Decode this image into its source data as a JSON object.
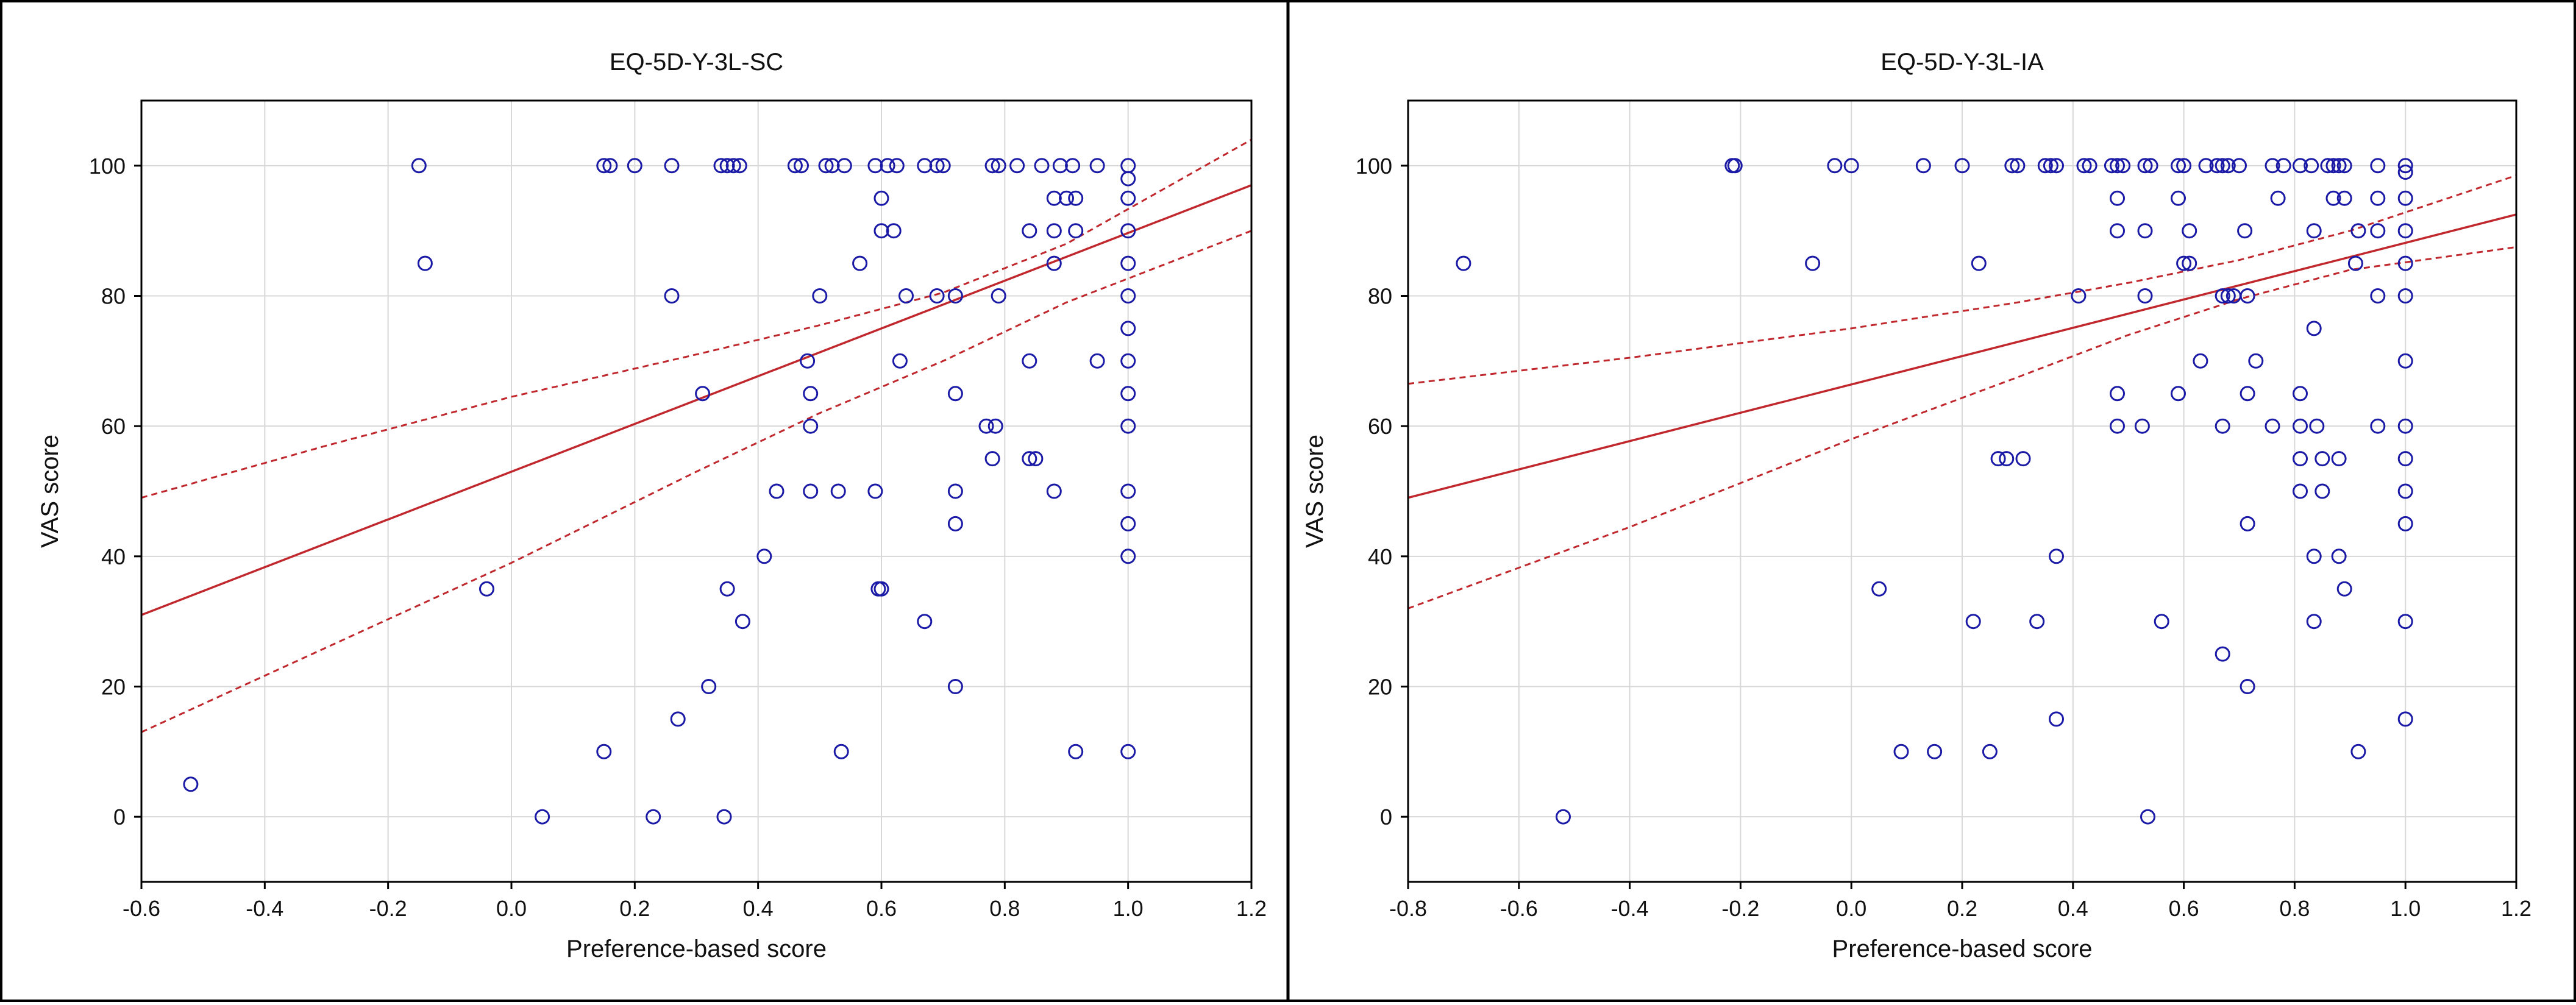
{
  "colors": {
    "point": "#1a1aa6",
    "fit_line": "#c0282d",
    "grid": "#d8d8d8",
    "axis": "#000000",
    "panel_border": "#000000"
  },
  "chart_data": [
    {
      "type": "scatter",
      "title": "EQ-5D-Y-3L-SC",
      "xlabel": "Preference-based score",
      "ylabel": "VAS score",
      "xlim": [
        -0.6,
        1.2
      ],
      "ylim": [
        -10,
        110
      ],
      "xticks": [
        -0.6,
        -0.4,
        -0.2,
        0.0,
        0.2,
        0.4,
        0.6,
        0.8,
        1.0,
        1.2
      ],
      "xtick_labels": [
        "-0.6",
        "-0.4",
        "-0.2",
        "0.0",
        "0.2",
        "0.4",
        "0.6",
        "0.8",
        "1.0",
        "1.2"
      ],
      "yticks": [
        0,
        20,
        40,
        60,
        80,
        100
      ],
      "ytick_labels": [
        "0",
        "20",
        "40",
        "60",
        "80",
        "100"
      ],
      "grid": true,
      "fit": {
        "x": [
          -0.6,
          1.2
        ],
        "y": [
          31,
          97
        ]
      },
      "ci_upper": {
        "x": [
          -0.6,
          -0.3,
          0.0,
          0.3,
          0.5,
          0.7,
          0.9,
          1.2
        ],
        "y": [
          49,
          57,
          64.5,
          71,
          75.5,
          80.5,
          88,
          104
        ]
      },
      "ci_lower": {
        "x": [
          -0.6,
          -0.3,
          0.0,
          0.3,
          0.5,
          0.7,
          0.9,
          1.2
        ],
        "y": [
          13,
          26,
          39,
          53,
          62,
          70,
          79,
          90
        ]
      },
      "points": [
        {
          "x": -0.52,
          "y": 5
        },
        {
          "x": -0.15,
          "y": 100
        },
        {
          "x": -0.14,
          "y": 85
        },
        {
          "x": -0.04,
          "y": 35
        },
        {
          "x": 0.05,
          "y": 0
        },
        {
          "x": 0.15,
          "y": 10
        },
        {
          "x": 0.15,
          "y": 100
        },
        {
          "x": 0.16,
          "y": 100
        },
        {
          "x": 0.2,
          "y": 100
        },
        {
          "x": 0.23,
          "y": 0
        },
        {
          "x": 0.26,
          "y": 100
        },
        {
          "x": 0.26,
          "y": 80
        },
        {
          "x": 0.27,
          "y": 15
        },
        {
          "x": 0.31,
          "y": 65
        },
        {
          "x": 0.32,
          "y": 20
        },
        {
          "x": 0.34,
          "y": 100
        },
        {
          "x": 0.35,
          "y": 100
        },
        {
          "x": 0.345,
          "y": 0
        },
        {
          "x": 0.35,
          "y": 35
        },
        {
          "x": 0.36,
          "y": 100
        },
        {
          "x": 0.37,
          "y": 100
        },
        {
          "x": 0.375,
          "y": 30
        },
        {
          "x": 0.41,
          "y": 40
        },
        {
          "x": 0.43,
          "y": 50
        },
        {
          "x": 0.46,
          "y": 100
        },
        {
          "x": 0.47,
          "y": 100
        },
        {
          "x": 0.48,
          "y": 70
        },
        {
          "x": 0.485,
          "y": 65
        },
        {
          "x": 0.485,
          "y": 60
        },
        {
          "x": 0.485,
          "y": 50
        },
        {
          "x": 0.5,
          "y": 80
        },
        {
          "x": 0.51,
          "y": 100
        },
        {
          "x": 0.52,
          "y": 100
        },
        {
          "x": 0.53,
          "y": 50
        },
        {
          "x": 0.535,
          "y": 10
        },
        {
          "x": 0.54,
          "y": 100
        },
        {
          "x": 0.565,
          "y": 85
        },
        {
          "x": 0.59,
          "y": 100
        },
        {
          "x": 0.59,
          "y": 50
        },
        {
          "x": 0.595,
          "y": 35
        },
        {
          "x": 0.6,
          "y": 35
        },
        {
          "x": 0.6,
          "y": 95
        },
        {
          "x": 0.6,
          "y": 90
        },
        {
          "x": 0.61,
          "y": 100
        },
        {
          "x": 0.62,
          "y": 90
        },
        {
          "x": 0.625,
          "y": 100
        },
        {
          "x": 0.63,
          "y": 70
        },
        {
          "x": 0.64,
          "y": 80
        },
        {
          "x": 0.67,
          "y": 100
        },
        {
          "x": 0.67,
          "y": 30
        },
        {
          "x": 0.69,
          "y": 100
        },
        {
          "x": 0.69,
          "y": 80
        },
        {
          "x": 0.7,
          "y": 100
        },
        {
          "x": 0.72,
          "y": 80
        },
        {
          "x": 0.72,
          "y": 65
        },
        {
          "x": 0.72,
          "y": 50
        },
        {
          "x": 0.72,
          "y": 45
        },
        {
          "x": 0.72,
          "y": 20
        },
        {
          "x": 0.77,
          "y": 60
        },
        {
          "x": 0.78,
          "y": 100
        },
        {
          "x": 0.78,
          "y": 55
        },
        {
          "x": 0.785,
          "y": 60
        },
        {
          "x": 0.79,
          "y": 100
        },
        {
          "x": 0.79,
          "y": 80
        },
        {
          "x": 0.82,
          "y": 100
        },
        {
          "x": 0.84,
          "y": 90
        },
        {
          "x": 0.84,
          "y": 70
        },
        {
          "x": 0.84,
          "y": 55
        },
        {
          "x": 0.85,
          "y": 55
        },
        {
          "x": 0.86,
          "y": 100
        },
        {
          "x": 0.88,
          "y": 95
        },
        {
          "x": 0.88,
          "y": 90
        },
        {
          "x": 0.88,
          "y": 85
        },
        {
          "x": 0.88,
          "y": 50
        },
        {
          "x": 0.89,
          "y": 100
        },
        {
          "x": 0.9,
          "y": 95
        },
        {
          "x": 0.91,
          "y": 100
        },
        {
          "x": 0.915,
          "y": 95
        },
        {
          "x": 0.915,
          "y": 90
        },
        {
          "x": 0.915,
          "y": 10
        },
        {
          "x": 0.95,
          "y": 100
        },
        {
          "x": 0.95,
          "y": 70
        },
        {
          "x": 1.0,
          "y": 100
        },
        {
          "x": 1.0,
          "y": 98
        },
        {
          "x": 1.0,
          "y": 95
        },
        {
          "x": 1.0,
          "y": 90
        },
        {
          "x": 1.0,
          "y": 85
        },
        {
          "x": 1.0,
          "y": 80
        },
        {
          "x": 1.0,
          "y": 75
        },
        {
          "x": 1.0,
          "y": 70
        },
        {
          "x": 1.0,
          "y": 65
        },
        {
          "x": 1.0,
          "y": 60
        },
        {
          "x": 1.0,
          "y": 50
        },
        {
          "x": 1.0,
          "y": 45
        },
        {
          "x": 1.0,
          "y": 40
        },
        {
          "x": 1.0,
          "y": 10
        }
      ]
    },
    {
      "type": "scatter",
      "title": "EQ-5D-Y-3L-IA",
      "xlabel": "Preference-based score",
      "ylabel": "VAS score",
      "xlim": [
        -0.8,
        1.2
      ],
      "ylim": [
        -10,
        110
      ],
      "xticks": [
        -0.8,
        -0.6,
        -0.4,
        -0.2,
        0.0,
        0.2,
        0.4,
        0.6,
        0.8,
        1.0,
        1.2
      ],
      "xtick_labels": [
        "-0.8",
        "-0.6",
        "-0.4",
        "-0.2",
        "0.0",
        "0.2",
        "0.4",
        "0.6",
        "0.8",
        "1.0",
        "1.2"
      ],
      "yticks": [
        0,
        20,
        40,
        60,
        80,
        100
      ],
      "ytick_labels": [
        "0",
        "20",
        "40",
        "60",
        "80",
        "100"
      ],
      "grid": true,
      "fit": {
        "x": [
          -0.8,
          1.2
        ],
        "y": [
          49,
          92.5
        ]
      },
      "ci_upper": {
        "x": [
          -0.8,
          -0.4,
          0.0,
          0.3,
          0.5,
          0.7,
          0.9,
          1.2
        ],
        "y": [
          66.5,
          70.5,
          75,
          79,
          82,
          85.5,
          90,
          98.5
        ]
      },
      "ci_lower": {
        "x": [
          -0.8,
          -0.4,
          0.0,
          0.3,
          0.5,
          0.7,
          0.9,
          1.2
        ],
        "y": [
          32,
          44.5,
          58,
          67.5,
          74,
          79.5,
          84,
          87.5
        ]
      },
      "points": [
        {
          "x": -0.7,
          "y": 85
        },
        {
          "x": -0.52,
          "y": 0
        },
        {
          "x": -0.215,
          "y": 100
        },
        {
          "x": -0.21,
          "y": 100
        },
        {
          "x": -0.07,
          "y": 85
        },
        {
          "x": -0.03,
          "y": 100
        },
        {
          "x": 0.0,
          "y": 100
        },
        {
          "x": 0.05,
          "y": 35
        },
        {
          "x": 0.09,
          "y": 10
        },
        {
          "x": 0.13,
          "y": 100
        },
        {
          "x": 0.15,
          "y": 10
        },
        {
          "x": 0.2,
          "y": 100
        },
        {
          "x": 0.22,
          "y": 30
        },
        {
          "x": 0.23,
          "y": 85
        },
        {
          "x": 0.25,
          "y": 10
        },
        {
          "x": 0.265,
          "y": 55
        },
        {
          "x": 0.28,
          "y": 55
        },
        {
          "x": 0.29,
          "y": 100
        },
        {
          "x": 0.3,
          "y": 100
        },
        {
          "x": 0.31,
          "y": 55
        },
        {
          "x": 0.335,
          "y": 30
        },
        {
          "x": 0.35,
          "y": 100
        },
        {
          "x": 0.36,
          "y": 100
        },
        {
          "x": 0.37,
          "y": 100
        },
        {
          "x": 0.37,
          "y": 40
        },
        {
          "x": 0.37,
          "y": 15
        },
        {
          "x": 0.41,
          "y": 80
        },
        {
          "x": 0.42,
          "y": 100
        },
        {
          "x": 0.43,
          "y": 100
        },
        {
          "x": 0.47,
          "y": 100
        },
        {
          "x": 0.48,
          "y": 100
        },
        {
          "x": 0.48,
          "y": 95
        },
        {
          "x": 0.48,
          "y": 90
        },
        {
          "x": 0.48,
          "y": 65
        },
        {
          "x": 0.48,
          "y": 60
        },
        {
          "x": 0.49,
          "y": 100
        },
        {
          "x": 0.525,
          "y": 60
        },
        {
          "x": 0.53,
          "y": 100
        },
        {
          "x": 0.53,
          "y": 90
        },
        {
          "x": 0.53,
          "y": 80
        },
        {
          "x": 0.535,
          "y": 0
        },
        {
          "x": 0.54,
          "y": 100
        },
        {
          "x": 0.56,
          "y": 30
        },
        {
          "x": 0.59,
          "y": 100
        },
        {
          "x": 0.59,
          "y": 95
        },
        {
          "x": 0.59,
          "y": 65
        },
        {
          "x": 0.6,
          "y": 85
        },
        {
          "x": 0.61,
          "y": 85
        },
        {
          "x": 0.61,
          "y": 90
        },
        {
          "x": 0.6,
          "y": 100
        },
        {
          "x": 0.63,
          "y": 70
        },
        {
          "x": 0.64,
          "y": 100
        },
        {
          "x": 0.66,
          "y": 100
        },
        {
          "x": 0.67,
          "y": 100
        },
        {
          "x": 0.67,
          "y": 80
        },
        {
          "x": 0.67,
          "y": 60
        },
        {
          "x": 0.67,
          "y": 25
        },
        {
          "x": 0.68,
          "y": 100
        },
        {
          "x": 0.68,
          "y": 80
        },
        {
          "x": 0.69,
          "y": 80
        },
        {
          "x": 0.7,
          "y": 100
        },
        {
          "x": 0.71,
          "y": 90
        },
        {
          "x": 0.715,
          "y": 80
        },
        {
          "x": 0.715,
          "y": 65
        },
        {
          "x": 0.715,
          "y": 45
        },
        {
          "x": 0.715,
          "y": 20
        },
        {
          "x": 0.73,
          "y": 70
        },
        {
          "x": 0.76,
          "y": 100
        },
        {
          "x": 0.76,
          "y": 60
        },
        {
          "x": 0.77,
          "y": 95
        },
        {
          "x": 0.78,
          "y": 100
        },
        {
          "x": 0.81,
          "y": 100
        },
        {
          "x": 0.81,
          "y": 65
        },
        {
          "x": 0.81,
          "y": 60
        },
        {
          "x": 0.81,
          "y": 55
        },
        {
          "x": 0.81,
          "y": 50
        },
        {
          "x": 0.83,
          "y": 100
        },
        {
          "x": 0.835,
          "y": 90
        },
        {
          "x": 0.835,
          "y": 75
        },
        {
          "x": 0.835,
          "y": 40
        },
        {
          "x": 0.835,
          "y": 30
        },
        {
          "x": 0.84,
          "y": 60
        },
        {
          "x": 0.85,
          "y": 55
        },
        {
          "x": 0.85,
          "y": 50
        },
        {
          "x": 0.86,
          "y": 100
        },
        {
          "x": 0.87,
          "y": 95
        },
        {
          "x": 0.87,
          "y": 100
        },
        {
          "x": 0.88,
          "y": 100
        },
        {
          "x": 0.88,
          "y": 55
        },
        {
          "x": 0.88,
          "y": 40
        },
        {
          "x": 0.89,
          "y": 100
        },
        {
          "x": 0.89,
          "y": 95
        },
        {
          "x": 0.89,
          "y": 35
        },
        {
          "x": 0.91,
          "y": 85
        },
        {
          "x": 0.915,
          "y": 90
        },
        {
          "x": 0.915,
          "y": 10
        },
        {
          "x": 0.95,
          "y": 100
        },
        {
          "x": 0.95,
          "y": 95
        },
        {
          "x": 0.95,
          "y": 90
        },
        {
          "x": 0.95,
          "y": 80
        },
        {
          "x": 0.95,
          "y": 60
        },
        {
          "x": 1.0,
          "y": 100
        },
        {
          "x": 1.0,
          "y": 99
        },
        {
          "x": 1.0,
          "y": 95
        },
        {
          "x": 1.0,
          "y": 90
        },
        {
          "x": 1.0,
          "y": 85
        },
        {
          "x": 1.0,
          "y": 80
        },
        {
          "x": 1.0,
          "y": 70
        },
        {
          "x": 1.0,
          "y": 60
        },
        {
          "x": 1.0,
          "y": 55
        },
        {
          "x": 1.0,
          "y": 50
        },
        {
          "x": 1.0,
          "y": 45
        },
        {
          "x": 1.0,
          "y": 30
        },
        {
          "x": 1.0,
          "y": 15
        }
      ]
    }
  ]
}
